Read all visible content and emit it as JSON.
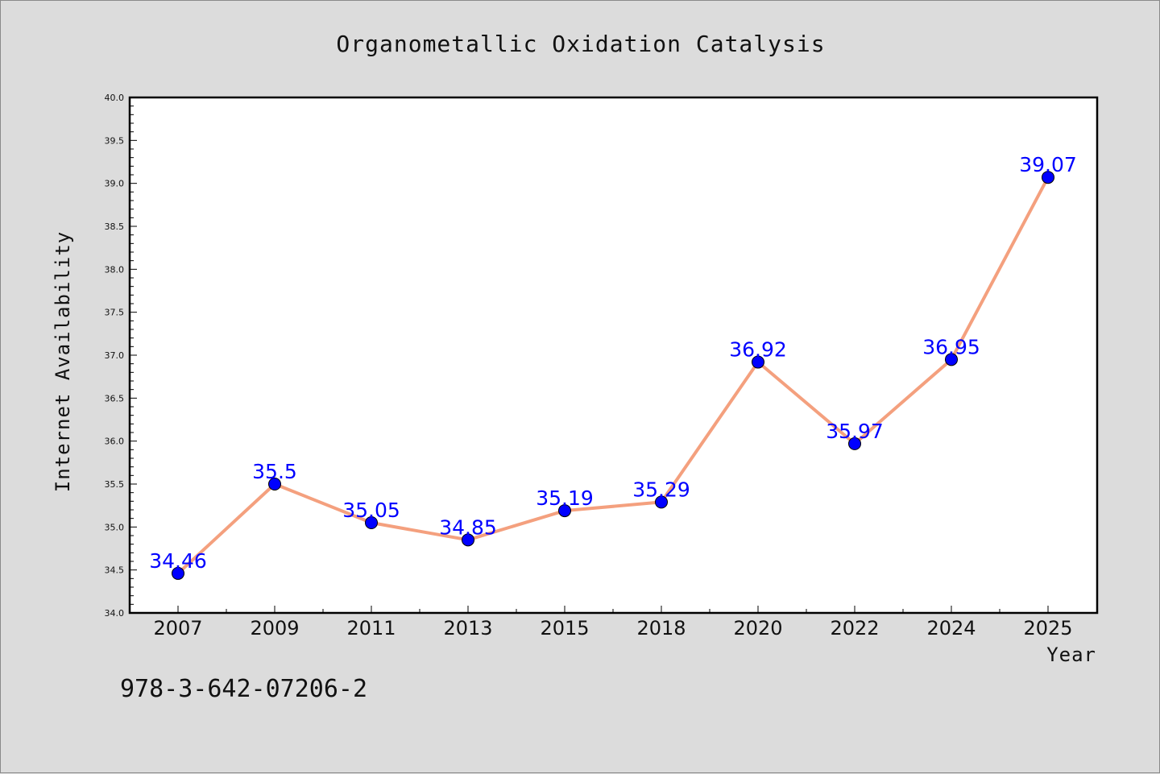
{
  "chart_data": {
    "type": "line",
    "title": "Organometallic Oxidation Catalysis",
    "xlabel": "Year",
    "ylabel": "Internet Availability",
    "categories": [
      "2007",
      "2009",
      "2011",
      "2013",
      "2015",
      "2018",
      "2020",
      "2022",
      "2024",
      "2025"
    ],
    "series": [
      {
        "values": [
          34.46,
          35.5,
          35.05,
          34.85,
          35.19,
          35.29,
          36.92,
          35.97,
          36.95,
          39.07
        ],
        "data_labels": [
          "34.46",
          "35.5",
          "35.05",
          "34.85",
          "35.19",
          "35.29",
          "36.92",
          "35.97",
          "36.95",
          "39.07"
        ],
        "line_color": "#f4a07e",
        "marker_color": "#0000ff"
      }
    ],
    "ylim": [
      34.0,
      40.0
    ],
    "yticks": [
      "34.0",
      "34.5",
      "35.0",
      "35.5",
      "36.0",
      "36.5",
      "37.0",
      "37.5",
      "38.0",
      "38.5",
      "39.0",
      "39.5",
      "40.0"
    ],
    "grid": false,
    "legend": "none",
    "label_color": "#0000ff",
    "plot_background": "#ffffff",
    "figure_background": "#dcdcdc"
  },
  "footer": {
    "code": "978-3-642-07206-2"
  }
}
